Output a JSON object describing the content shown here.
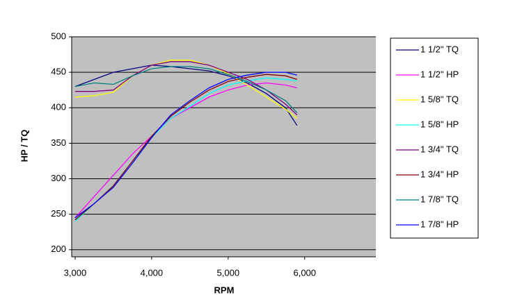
{
  "chart_data": {
    "type": "line",
    "x_label": "RPM",
    "y_label": "HP / TQ",
    "x": [
      3000,
      3250,
      3500,
      3750,
      4000,
      4250,
      4500,
      4750,
      5000,
      5250,
      5500,
      5750,
      5900
    ],
    "series": [
      {
        "name": "1 1/2\" TQ",
        "color": "#000080",
        "values": [
          430,
          440,
          450,
          455,
          460,
          458,
          455,
          452,
          445,
          435,
          420,
          400,
          375
        ]
      },
      {
        "name": "1 1/2\" HP",
        "color": "#ff00ff",
        "values": [
          245,
          275,
          305,
          335,
          360,
          385,
          400,
          415,
          425,
          432,
          435,
          432,
          428
        ]
      },
      {
        "name": "1 5/8\" TQ",
        "color": "#ffff00",
        "values": [
          415,
          417,
          422,
          445,
          460,
          467,
          467,
          460,
          448,
          432,
          415,
          398,
          385
        ]
      },
      {
        "name": "1 5/8\" HP",
        "color": "#00ffff",
        "values": [
          240,
          265,
          290,
          325,
          358,
          385,
          402,
          420,
          432,
          438,
          442,
          440,
          438
        ]
      },
      {
        "name": "1 3/4\" TQ",
        "color": "#800080",
        "values": [
          423,
          423,
          425,
          445,
          460,
          465,
          465,
          460,
          450,
          440,
          425,
          405,
          390
        ]
      },
      {
        "name": "1 3/4\" HP",
        "color": "#800000",
        "values": [
          242,
          265,
          290,
          325,
          360,
          388,
          408,
          425,
          437,
          443,
          447,
          445,
          440
        ]
      },
      {
        "name": "1 7/8\" TQ",
        "color": "#008080",
        "values": [
          430,
          435,
          433,
          445,
          455,
          458,
          458,
          455,
          447,
          437,
          425,
          410,
          393
        ]
      },
      {
        "name": "1 7/8\" HP",
        "color": "#0000ff",
        "values": [
          245,
          265,
          288,
          322,
          358,
          390,
          410,
          428,
          440,
          446,
          450,
          450,
          446
        ]
      }
    ],
    "xlim": [
      2955,
      6930
    ],
    "xticks": [
      {
        "value": 3000,
        "label": "3,000"
      },
      {
        "value": 4000,
        "label": "4,000"
      },
      {
        "value": 5000,
        "label": "5,000"
      },
      {
        "value": 6000,
        "label": "6,000"
      }
    ],
    "ylim": [
      190,
      500
    ],
    "yticks": [
      200,
      250,
      300,
      350,
      400,
      450,
      500
    ],
    "grid": true,
    "legend": "right"
  }
}
